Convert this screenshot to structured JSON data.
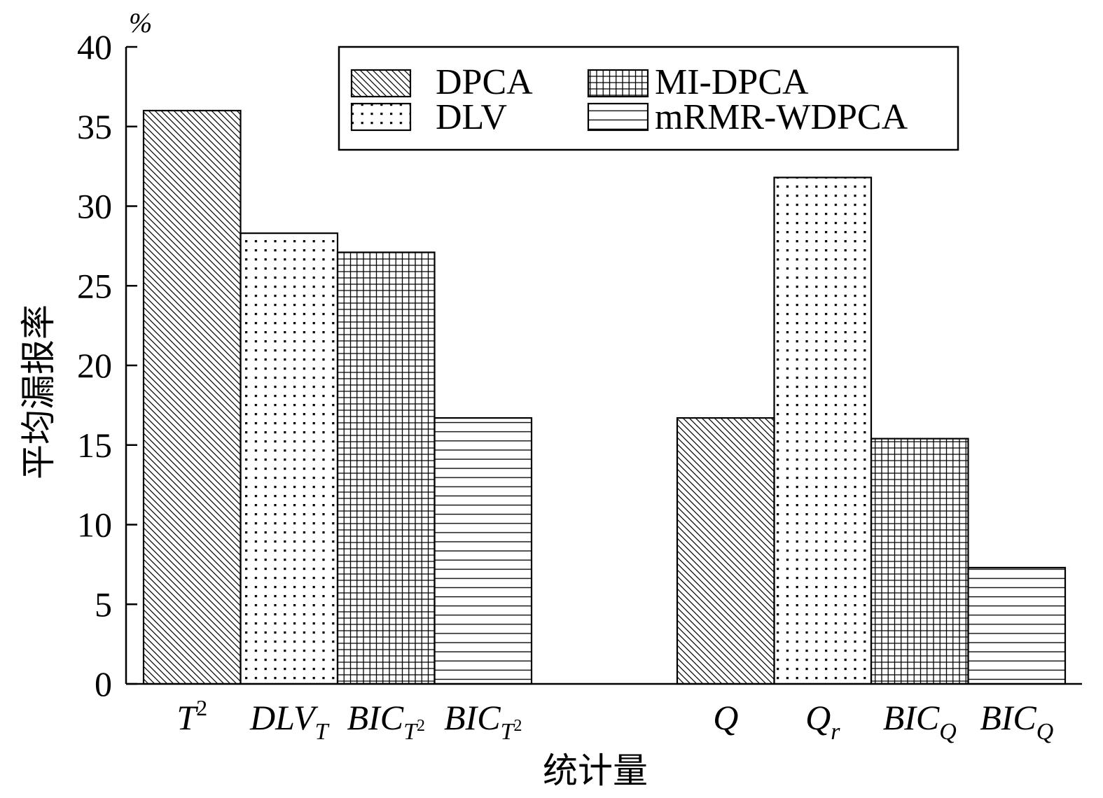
{
  "chart_data": {
    "type": "bar",
    "xlabel": "统计量",
    "ylabel": "平均漏报率",
    "yunit": "%",
    "ylim": [
      0,
      40
    ],
    "yticks": [
      0,
      5,
      10,
      15,
      20,
      25,
      30,
      35,
      40
    ],
    "grid": false,
    "legend_position": "top",
    "series": [
      {
        "name": "DPCA",
        "pattern": "diagonal-hatch",
        "values": [
          36.0,
          16.7
        ]
      },
      {
        "name": "DLV",
        "pattern": "dots",
        "values": [
          28.3,
          31.8
        ]
      },
      {
        "name": "MI-DPCA",
        "pattern": "grid",
        "values": [
          27.1,
          15.4
        ]
      },
      {
        "name": "mRMR-WDPCA",
        "pattern": "horizontal-lines",
        "values": [
          16.7,
          7.3
        ]
      }
    ],
    "groups": [
      {
        "tick_labels": [
          {
            "base": "T",
            "sup": "2"
          },
          {
            "base": "DLV",
            "sub": "T"
          },
          {
            "base": "BIC",
            "sub": "T",
            "sub_sup": "2"
          },
          {
            "base": "BIC",
            "sub": "T",
            "sub_sup": "2"
          }
        ]
      },
      {
        "tick_labels": [
          {
            "base": "Q"
          },
          {
            "base": "Q",
            "sub": "r"
          },
          {
            "base": "BIC",
            "sub": "Q"
          },
          {
            "base": "BIC",
            "sub": "Q"
          }
        ]
      }
    ]
  }
}
